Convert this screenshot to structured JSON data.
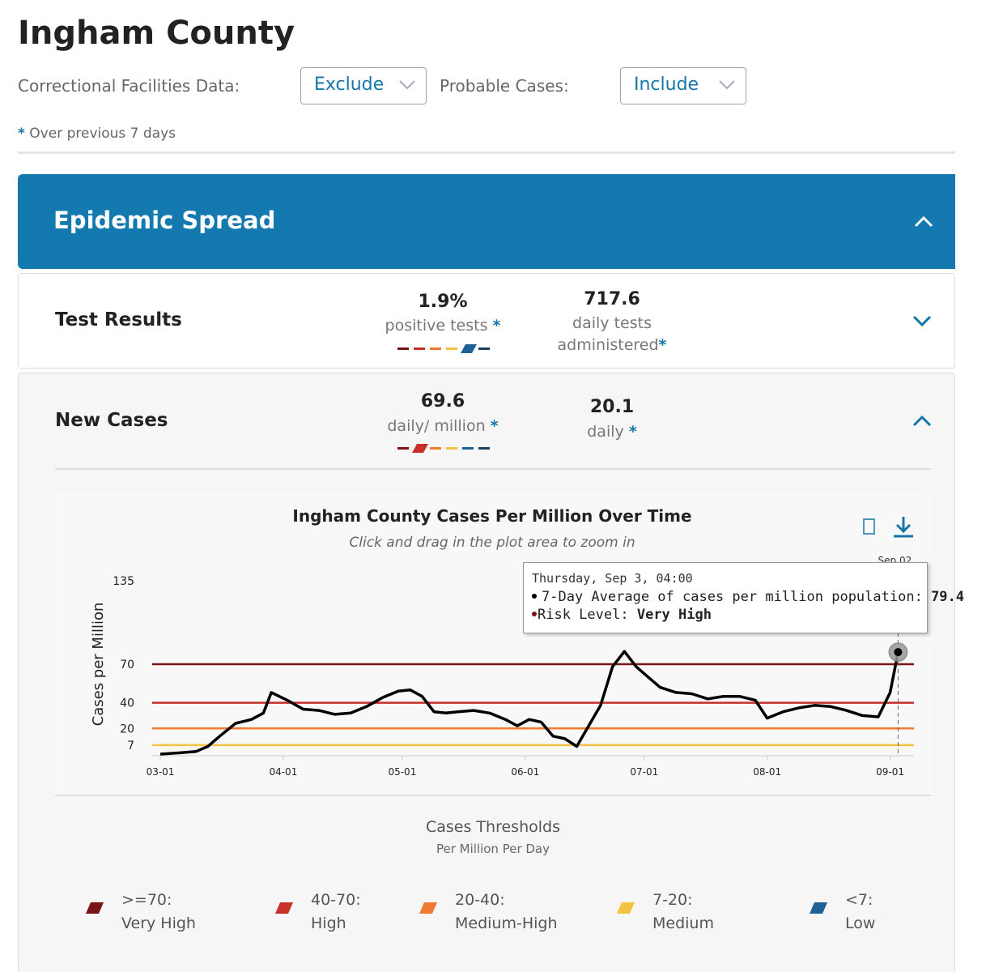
{
  "header": {
    "title": "Ingham County",
    "filters": [
      {
        "label": "Correctional Facilities Data:",
        "value": "Exclude"
      },
      {
        "label": "Probable Cases:",
        "value": "Include"
      }
    ],
    "note_mark": "*",
    "note": "Over previous 7 days"
  },
  "section": {
    "title": "Epidemic Spread"
  },
  "risk_scale_colors": [
    "#7a1416",
    "#c8302a",
    "#f07b30",
    "#f5c342",
    "#1f6296",
    "#1d3f5c"
  ],
  "metrics": [
    {
      "title": "Test Results",
      "items": [
        {
          "value": "1.9%",
          "label": "positive tests",
          "risk_index": 4
        },
        {
          "value": "717.6",
          "label": "daily tests administered"
        }
      ]
    },
    {
      "title": "New Cases",
      "items": [
        {
          "value": "69.6",
          "label": "daily/ million",
          "risk_index": 1
        },
        {
          "value": "20.1",
          "label": "daily"
        }
      ]
    }
  ],
  "chart_data": {
    "type": "line",
    "title": "Ingham County Cases Per Million Over Time",
    "subtitle": "Click and drag in the plot area to zoom in",
    "y_label": "Cases per Million",
    "x": [
      "03-01",
      "03-06",
      "03-10",
      "03-13",
      "03-16",
      "03-20",
      "03-24",
      "03-27",
      "03-29",
      "04-02",
      "04-06",
      "04-10",
      "04-14",
      "04-18",
      "04-22",
      "04-26",
      "04-30",
      "05-03",
      "05-06",
      "05-09",
      "05-12",
      "05-15",
      "05-19",
      "05-23",
      "05-27",
      "05-30",
      "06-02",
      "06-05",
      "06-08",
      "06-11",
      "06-14",
      "06-17",
      "06-20",
      "06-23",
      "06-26",
      "06-29",
      "07-02",
      "07-05",
      "07-09",
      "07-13",
      "07-17",
      "07-21",
      "07-25",
      "07-29",
      "08-01",
      "08-05",
      "08-09",
      "08-13",
      "08-17",
      "08-21",
      "08-25",
      "08-29",
      "09-01",
      "09-03"
    ],
    "series": [
      {
        "color": "#000000",
        "values": [
          0,
          1,
          2,
          6,
          14,
          24,
          27,
          32,
          48,
          42,
          35,
          34,
          31,
          32,
          37,
          44,
          49,
          50,
          45,
          33,
          32,
          33,
          34,
          32,
          27,
          22,
          27,
          25,
          14,
          12,
          6,
          22,
          38,
          68,
          80,
          68,
          60,
          52,
          48,
          47,
          43,
          45,
          45,
          42,
          28,
          33,
          36,
          38,
          37,
          34,
          30,
          29,
          48,
          79.4
        ]
      }
    ],
    "xlim": [
      "03-01",
      "09-07"
    ],
    "xticks": [
      "03-01",
      "04-01",
      "05-01",
      "06-01",
      "07-01",
      "08-01",
      "09-01"
    ],
    "ylim": [
      0,
      135
    ],
    "yticks": [
      7,
      20,
      40,
      70,
      135
    ],
    "grid": false,
    "thresholds": [
      {
        "value": 70,
        "color": "#7a1416"
      },
      {
        "value": 40,
        "color": "#c8302a"
      },
      {
        "value": 20,
        "color": "#f07b30"
      },
      {
        "value": 7,
        "color": "#f5c342"
      }
    ],
    "cursor_label": "Sep 02"
  },
  "tooltip": {
    "date": "Thursday, Sep 3, 04:00",
    "series_label": "7-Day Average of cases per million population:",
    "value": "79.4",
    "risk_label": "Risk Level:",
    "risk": "Very High"
  },
  "legend": {
    "title": "Cases Thresholds",
    "subtitle": "Per Million Per Day",
    "items": [
      {
        "range": ">=70:",
        "level": "Very High",
        "color": "#7a1416"
      },
      {
        "range": "40-70:",
        "level": "High",
        "color": "#c8302a"
      },
      {
        "range": "20-40:",
        "level": "Medium-High",
        "color": "#f07b30"
      },
      {
        "range": "7-20:",
        "level": "Medium",
        "color": "#f5c342"
      },
      {
        "range": "<7:",
        "level": "Low",
        "color": "#1f6296"
      }
    ]
  }
}
